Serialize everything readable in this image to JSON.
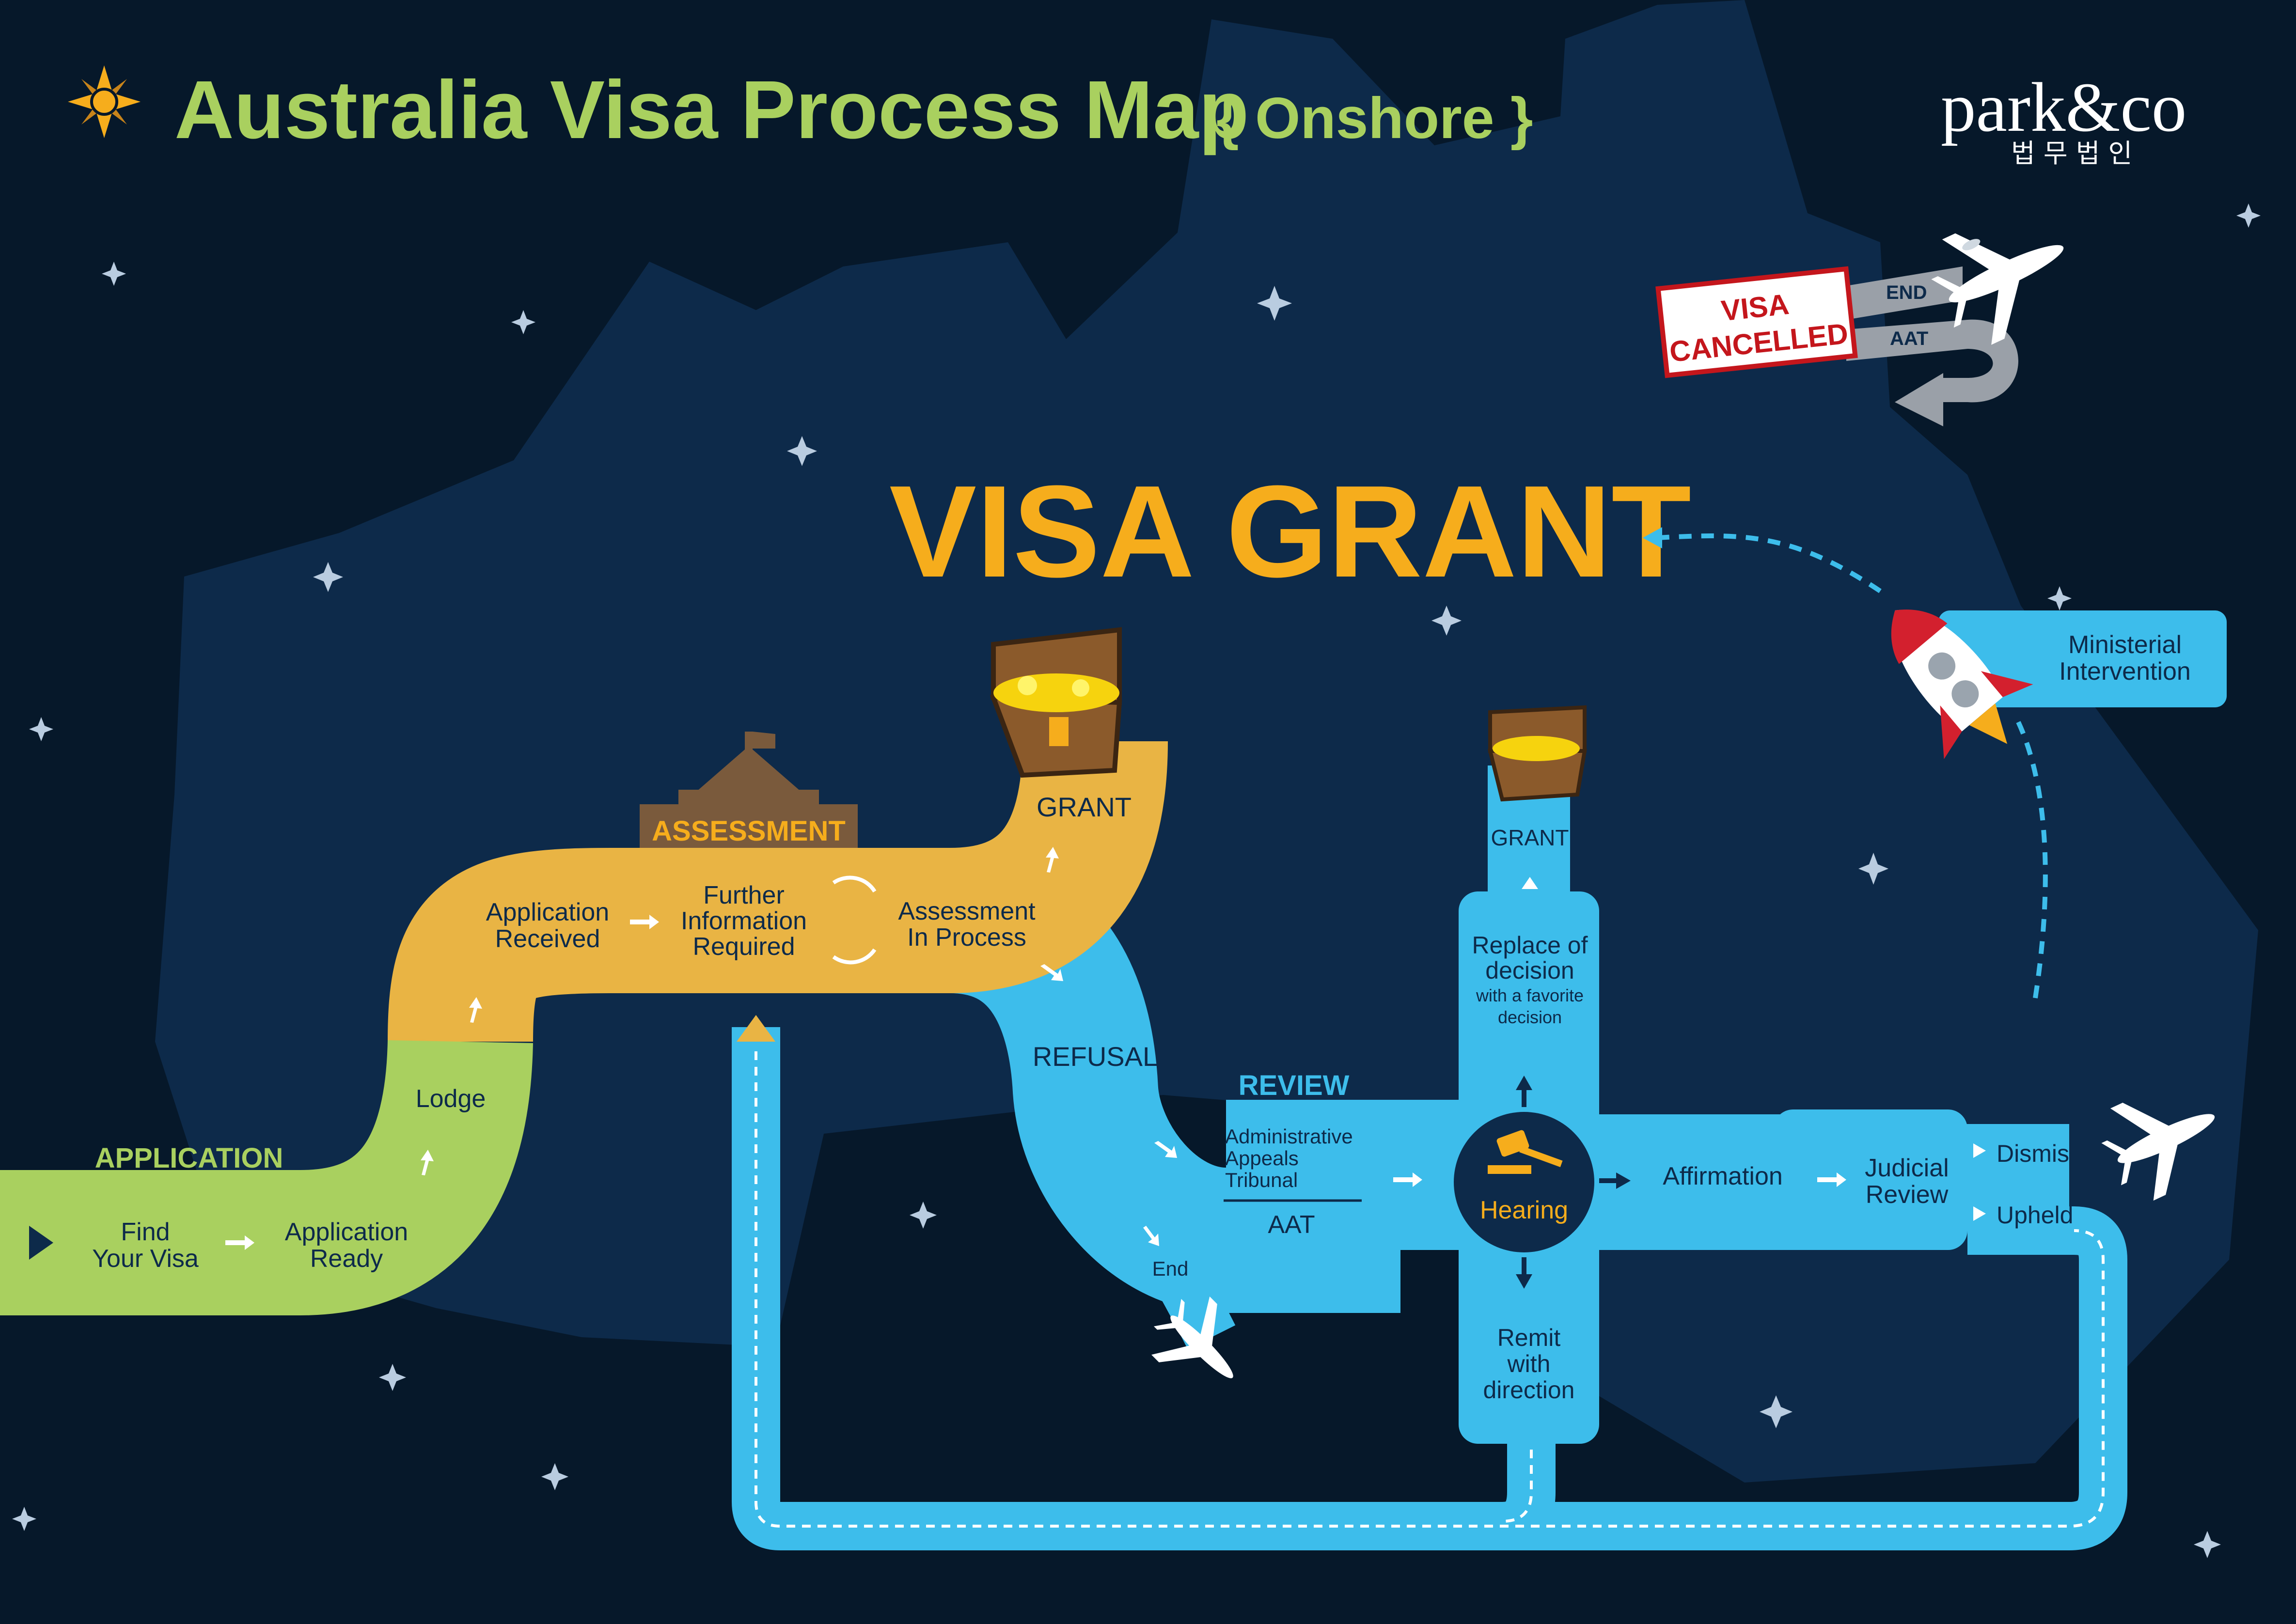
{
  "header": {
    "title": "Australia Visa Process Map",
    "subtitle": "{ Onshore }",
    "logo_text": "park&co",
    "logo_korean": "법 무 법 인"
  },
  "visa_grant": "VISA GRANT",
  "cancelled": {
    "sign": [
      "VISA",
      "CANCELLED"
    ],
    "end_label": "END",
    "aat_label": "AAT"
  },
  "application": {
    "section_label": "APPLICATION",
    "find_your_visa": [
      "Find",
      "Your Visa"
    ],
    "application_ready": [
      "Application",
      "Ready"
    ],
    "lodge": "Lodge"
  },
  "assessment": {
    "banner": "ASSESSMENT",
    "application_received": [
      "Application",
      "Received"
    ],
    "further_information": [
      "Further",
      "Information",
      "Required"
    ],
    "assessment_in_process": [
      "Assessment",
      "In Process"
    ],
    "grant": "GRANT"
  },
  "refusal": {
    "label": "REFUSAL",
    "end": "End"
  },
  "review": {
    "label": "REVIEW",
    "tribunal": [
      "Administrative",
      "Appeals",
      "Tribunal"
    ],
    "aat": "AAT",
    "hearing": "Hearing",
    "grant": "GRANT",
    "replace": [
      "Replace of",
      "decision"
    ],
    "replace_note": [
      "with a favorite",
      "decision"
    ],
    "remit": [
      "Remit",
      "with",
      "direction"
    ],
    "affirmation": "Affirmation",
    "judicial_review": [
      "Judicial",
      "Review"
    ],
    "dismissal": "Dismissal",
    "upheld": "Upheld"
  },
  "ministerial": [
    "Ministerial",
    "Intervention"
  ],
  "colors": {
    "background": "#06182a",
    "map": "#0d2a4a",
    "green": "#a9d05f",
    "gold": "#e9b444",
    "blue": "#3dbdeb",
    "title": "#a9d05f",
    "visa_grant": "#f6ad1c",
    "navy_text": "#0d2a4a"
  }
}
